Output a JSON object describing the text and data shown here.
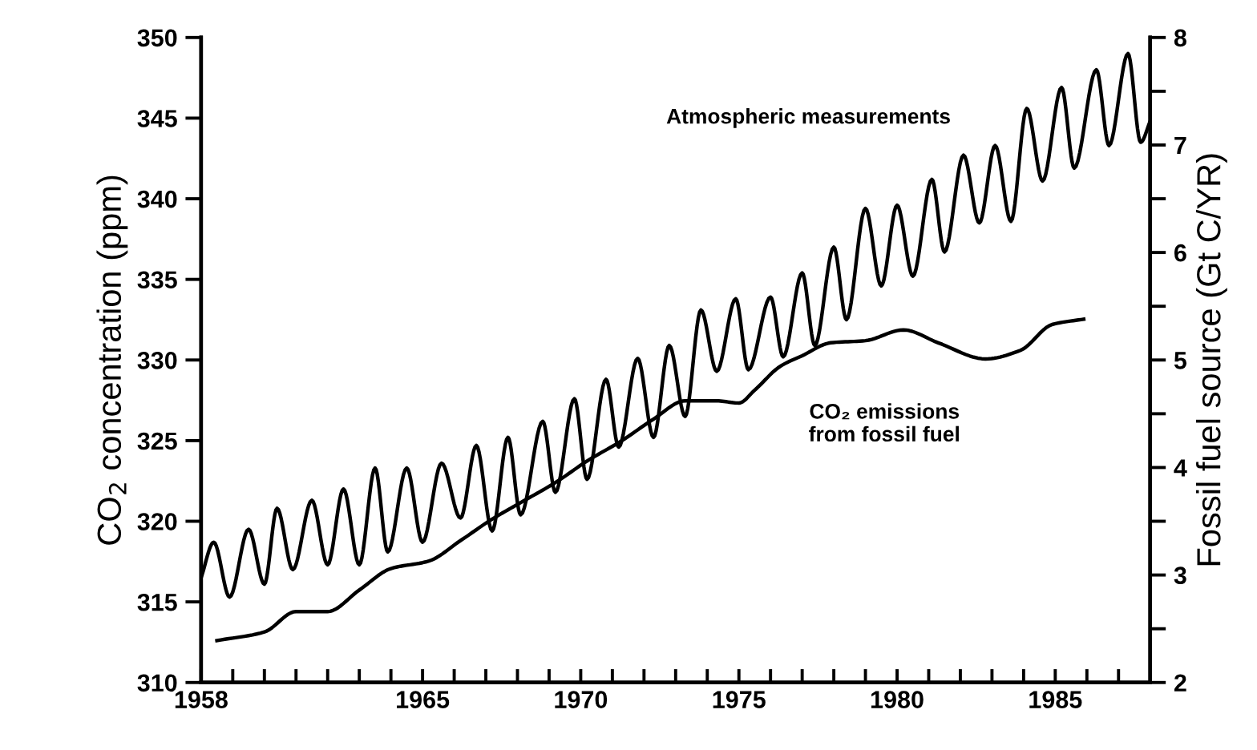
{
  "chart_data": {
    "type": "line",
    "ylabel": "CO$_{2}$ concentration (ppm)",
    "y2label": "Fossil fuel source (Gt C/YR)",
    "xlim": [
      1958,
      1988
    ],
    "xticks": [
      1958,
      {
        "value": 1959,
        "label": null
      },
      {
        "value": 1960,
        "label": null
      },
      {
        "value": 1961,
        "label": null
      },
      {
        "value": 1962,
        "label": null
      },
      {
        "value": 1963,
        "label": null
      },
      {
        "value": 1964,
        "label": null
      },
      1965,
      {
        "value": 1966,
        "label": null
      },
      {
        "value": 1967,
        "label": null
      },
      {
        "value": 1968,
        "label": null
      },
      {
        "value": 1969,
        "label": null
      },
      1970,
      {
        "value": 1971,
        "label": null
      },
      {
        "value": 1972,
        "label": null
      },
      {
        "value": 1973,
        "label": null
      },
      {
        "value": 1974,
        "label": null
      },
      1975,
      {
        "value": 1976,
        "label": null
      },
      {
        "value": 1977,
        "label": null
      },
      {
        "value": 1978,
        "label": null
      },
      {
        "value": 1979,
        "label": null
      },
      1980,
      {
        "value": 1981,
        "label": null
      },
      {
        "value": 1982,
        "label": null
      },
      {
        "value": 1983,
        "label": null
      },
      {
        "value": 1984,
        "label": null
      },
      1985,
      {
        "value": 1986,
        "label": null
      },
      {
        "value": 1987,
        "label": null
      }
    ],
    "ylim": [
      310,
      350
    ],
    "yticks": [
      310,
      315,
      320,
      325,
      330,
      335,
      340,
      345,
      350
    ],
    "y2lim": [
      2,
      8
    ],
    "y2ticks": [
      2,
      {
        "value": 2.5,
        "label": null
      },
      3,
      {
        "value": 3.5,
        "label": null
      },
      4,
      {
        "value": 4.5,
        "label": null
      },
      5,
      {
        "value": 5.5,
        "label": null
      },
      6,
      {
        "value": 6.5,
        "label": null
      },
      7,
      {
        "value": 7.5,
        "label": null
      },
      8
    ],
    "grid": false,
    "legend": false,
    "marker": "none",
    "line_style": "solid",
    "series": [
      {
        "name": "Atmospheric measurements",
        "color": "#000000",
        "x": [
          1958.0,
          1958.4,
          1958.9,
          1959.5,
          1960.0,
          1960.4,
          1960.9,
          1961.5,
          1962.0,
          1962.5,
          1963.0,
          1963.5,
          1963.9,
          1964.5,
          1965.0,
          1965.6,
          1966.2,
          1966.7,
          1967.2,
          1967.7,
          1968.1,
          1968.8,
          1969.2,
          1969.8,
          1970.2,
          1970.8,
          1971.2,
          1971.8,
          1972.3,
          1972.8,
          1973.3,
          1973.8,
          1974.3,
          1974.9,
          1975.3,
          1976.0,
          1976.4,
          1977.0,
          1977.4,
          1978.0,
          1978.4,
          1979.0,
          1979.5,
          1980.0,
          1980.5,
          1981.1,
          1981.5,
          1982.1,
          1982.6,
          1983.1,
          1983.6,
          1984.1,
          1984.6,
          1985.2,
          1985.6,
          1986.3,
          1986.7,
          1987.3,
          1987.7,
          1988.0
        ],
        "values": [
          316.5,
          318.7,
          315.3,
          319.5,
          316.1,
          320.8,
          317.0,
          321.3,
          317.3,
          322.0,
          317.3,
          323.3,
          318.1,
          323.3,
          318.7,
          323.6,
          320.2,
          324.7,
          319.4,
          325.2,
          320.4,
          326.2,
          321.8,
          327.6,
          322.6,
          328.8,
          324.6,
          330.1,
          325.2,
          330.9,
          326.5,
          333.1,
          329.3,
          333.8,
          329.4,
          333.9,
          330.2,
          335.4,
          330.9,
          337.0,
          332.5,
          339.4,
          334.6,
          339.6,
          335.2,
          341.2,
          336.7,
          342.7,
          338.5,
          343.3,
          338.6,
          345.6,
          341.1,
          346.9,
          341.9,
          348.0,
          343.3,
          349.0,
          343.5,
          344.8
        ]
      },
      {
        "name": "CO₂ emissions\nfrom fossil fuel",
        "color": "#000000",
        "axis": "y2",
        "x": [
          1958.5,
          1960.0,
          1961.0,
          1962.0,
          1963.0,
          1964.0,
          1965.2,
          1966.2,
          1967.2,
          1968.2,
          1969.2,
          1970.2,
          1971.3,
          1972.3,
          1973.3,
          1974.3,
          1975.0,
          1975.5,
          1976.3,
          1977.0,
          1977.9,
          1979.0,
          1980.2,
          1981.3,
          1982.8,
          1983.9,
          1984.9,
          1985.9
        ],
        "values": [
          2.39,
          2.47,
          2.66,
          2.66,
          2.86,
          3.06,
          3.13,
          3.32,
          3.52,
          3.69,
          3.86,
          4.06,
          4.25,
          4.45,
          4.62,
          4.62,
          4.6,
          4.72,
          4.94,
          5.04,
          5.16,
          5.18,
          5.28,
          5.16,
          5.01,
          5.09,
          5.33,
          5.38
        ]
      }
    ]
  }
}
